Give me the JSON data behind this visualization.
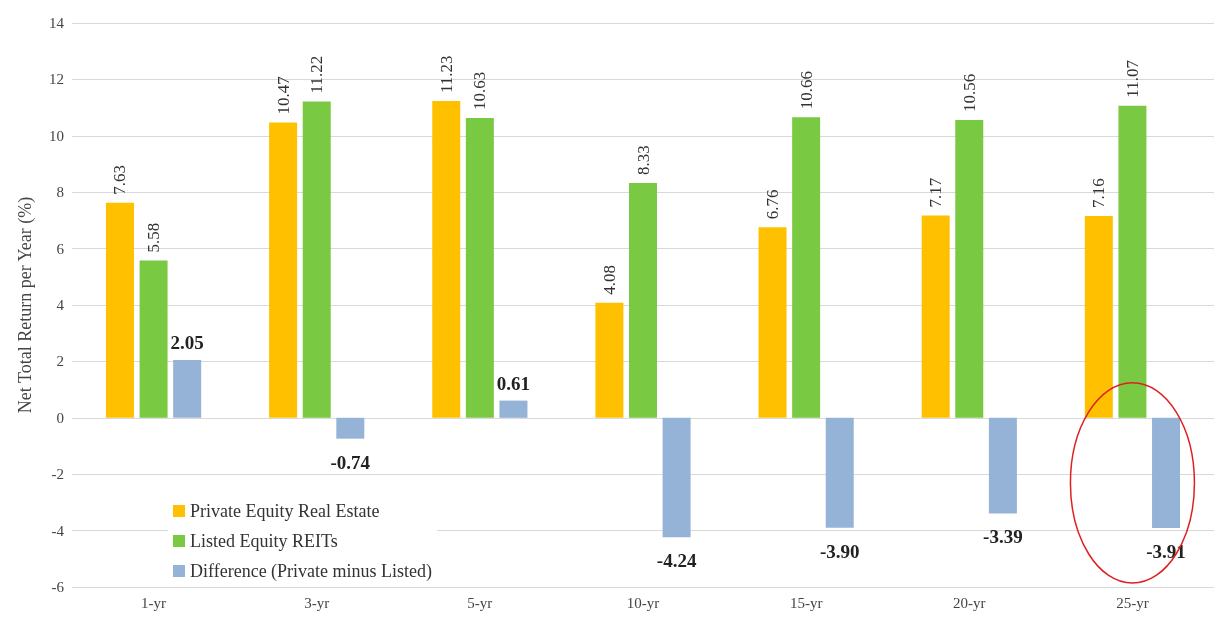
{
  "chart_data": {
    "type": "bar",
    "ylabel": "Net Total Return per Year (%)",
    "categories": [
      "1-yr",
      "3-yr",
      "5-yr",
      "10-yr",
      "15-yr",
      "20-yr",
      "25-yr"
    ],
    "series": [
      {
        "name": "Private Equity Real Estate",
        "color": "#ffc000",
        "values": [
          7.63,
          10.47,
          11.23,
          4.08,
          6.76,
          7.17,
          7.16
        ],
        "value_labels": [
          "7.63",
          "10.47",
          "11.23",
          "4.08",
          "6.76",
          "7.17",
          "7.16"
        ]
      },
      {
        "name": "Listed Equity REITs",
        "color": "#7ac943",
        "values": [
          5.58,
          11.22,
          10.63,
          8.33,
          10.66,
          10.56,
          11.07
        ],
        "value_labels": [
          "5.58",
          "11.22",
          "10.63",
          "8.33",
          "10.66",
          "10.56",
          "11.07"
        ]
      },
      {
        "name": "Difference (Private minus Listed)",
        "color": "#95b3d7",
        "values": [
          2.05,
          -0.74,
          0.61,
          -4.24,
          -3.9,
          -3.39,
          -3.91
        ],
        "value_labels": [
          "2.05",
          "-0.74",
          "0.61",
          "-4.24",
          "-3.90",
          "-3.39",
          "-3.91"
        ]
      }
    ],
    "ylim": [
      -6,
      14
    ],
    "yticks": [
      -6,
      -4,
      -2,
      0,
      2,
      4,
      6,
      8,
      10,
      12,
      14
    ],
    "grid": "y",
    "legend": "bottom left"
  }
}
